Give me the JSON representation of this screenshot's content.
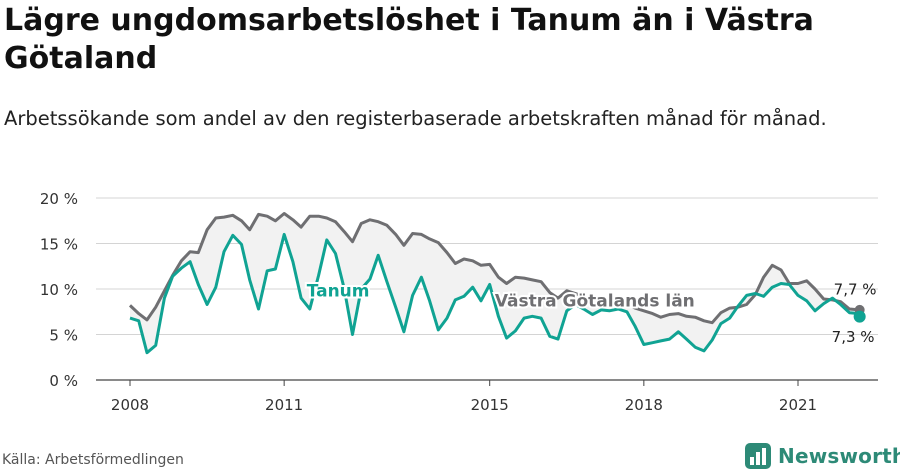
{
  "title": "Lägre ungdomsarbetslöshet i Tanum än i Västra Götaland",
  "subtitle": "Arbetssökande som andel av den registerbaserade arbetskraften månad för månad.",
  "source": "Källa: Arbetsförmedlingen",
  "brand": {
    "name": "Newsworthy",
    "icon": "newsworthy-logo-icon"
  },
  "colors": {
    "tanum": "#10a393",
    "vg": "#6f6f72",
    "fill": "#f2f2f2"
  },
  "chart_data": {
    "type": "line",
    "ylim": [
      0,
      20
    ],
    "yticks": [
      0,
      5,
      10,
      15,
      20
    ],
    "ytick_labels": [
      "0 %",
      "5 %",
      "10 %",
      "15 %",
      "20 %"
    ],
    "xlim": [
      2008.0,
      2022.6
    ],
    "xticks": [
      2008,
      2011,
      2015,
      2018,
      2021
    ],
    "xtick_labels": [
      "2008",
      "2011",
      "2015",
      "2018",
      "2021"
    ],
    "grid": true,
    "series": [
      {
        "name": "Västra Götalands län",
        "label": "Västra Götalands län",
        "color": "#6f6f72",
        "x": [
          2008.0,
          2008.17,
          2008.33,
          2008.5,
          2008.67,
          2008.83,
          2009.0,
          2009.17,
          2009.33,
          2009.5,
          2009.67,
          2009.83,
          2010.0,
          2010.17,
          2010.33,
          2010.5,
          2010.67,
          2010.83,
          2011.0,
          2011.17,
          2011.33,
          2011.5,
          2011.67,
          2011.83,
          2012.0,
          2012.17,
          2012.33,
          2012.5,
          2012.67,
          2012.83,
          2013.0,
          2013.17,
          2013.33,
          2013.5,
          2013.67,
          2013.83,
          2014.0,
          2014.17,
          2014.33,
          2014.5,
          2014.67,
          2014.83,
          2015.0,
          2015.17,
          2015.33,
          2015.5,
          2015.67,
          2015.83,
          2016.0,
          2016.17,
          2016.33,
          2016.5,
          2016.67,
          2016.83,
          2017.0,
          2017.17,
          2017.33,
          2017.5,
          2017.67,
          2017.83,
          2018.0,
          2018.17,
          2018.33,
          2018.5,
          2018.67,
          2018.83,
          2019.0,
          2019.17,
          2019.33,
          2019.5,
          2019.67,
          2019.83,
          2020.0,
          2020.17,
          2020.33,
          2020.5,
          2020.67,
          2020.83,
          2021.0,
          2021.17,
          2021.33,
          2021.5,
          2021.67,
          2021.83,
          2022.0,
          2022.2
        ],
        "values": [
          8.2,
          7.3,
          6.6,
          8.0,
          9.8,
          11.5,
          13.1,
          14.1,
          14.0,
          16.5,
          17.8,
          17.9,
          18.1,
          17.5,
          16.5,
          18.2,
          18.0,
          17.5,
          18.3,
          17.6,
          16.8,
          18.0,
          18.0,
          17.8,
          17.4,
          16.3,
          15.2,
          17.2,
          17.6,
          17.4,
          17.0,
          16.0,
          14.8,
          16.1,
          16.0,
          15.5,
          15.1,
          14.0,
          12.8,
          13.3,
          13.1,
          12.6,
          12.7,
          11.3,
          10.6,
          11.3,
          11.2,
          11.0,
          10.8,
          9.6,
          9.0,
          9.8,
          9.5,
          9.2,
          9.1,
          8.6,
          8.1,
          8.5,
          8.3,
          7.9,
          7.6,
          7.3,
          6.9,
          7.2,
          7.3,
          7.0,
          6.9,
          6.5,
          6.3,
          7.4,
          7.9,
          8.0,
          8.3,
          9.4,
          11.3,
          12.6,
          12.1,
          10.6,
          10.6,
          10.9,
          10.0,
          8.9,
          8.8,
          8.6,
          7.8,
          7.7
        ],
        "end_label": "7,7 %"
      },
      {
        "name": "Tanum",
        "label": "Tanum",
        "color": "#10a393",
        "x": [
          2008.0,
          2008.17,
          2008.33,
          2008.5,
          2008.67,
          2008.83,
          2009.0,
          2009.17,
          2009.33,
          2009.5,
          2009.67,
          2009.83,
          2010.0,
          2010.17,
          2010.33,
          2010.5,
          2010.67,
          2010.83,
          2011.0,
          2011.17,
          2011.33,
          2011.5,
          2011.67,
          2011.83,
          2012.0,
          2012.17,
          2012.33,
          2012.5,
          2012.67,
          2012.83,
          2013.0,
          2013.17,
          2013.33,
          2013.5,
          2013.67,
          2013.83,
          2014.0,
          2014.17,
          2014.33,
          2014.5,
          2014.67,
          2014.83,
          2015.0,
          2015.17,
          2015.33,
          2015.5,
          2015.67,
          2015.83,
          2016.0,
          2016.17,
          2016.33,
          2016.5,
          2016.67,
          2016.83,
          2017.0,
          2017.17,
          2017.33,
          2017.5,
          2017.67,
          2017.83,
          2018.0,
          2018.17,
          2018.33,
          2018.5,
          2018.67,
          2018.83,
          2019.0,
          2019.17,
          2019.33,
          2019.5,
          2019.67,
          2019.83,
          2020.0,
          2020.17,
          2020.33,
          2020.5,
          2020.67,
          2020.83,
          2021.0,
          2021.17,
          2021.33,
          2021.5,
          2021.67,
          2021.83,
          2022.0,
          2022.2
        ],
        "values": [
          6.8,
          6.5,
          3.0,
          3.8,
          9.0,
          11.4,
          12.3,
          13.0,
          10.5,
          8.3,
          10.2,
          14.1,
          15.9,
          14.9,
          11.0,
          7.8,
          12.0,
          12.2,
          16.0,
          13.0,
          9.0,
          7.8,
          11.5,
          15.4,
          13.9,
          10.0,
          5.0,
          10.0,
          11.1,
          13.7,
          10.8,
          8.0,
          5.3,
          9.3,
          11.3,
          8.7,
          5.5,
          6.8,
          8.8,
          9.2,
          10.2,
          8.7,
          10.5,
          7.0,
          4.6,
          5.4,
          6.8,
          7.0,
          6.8,
          4.8,
          4.5,
          7.6,
          8.3,
          7.8,
          7.2,
          7.7,
          7.6,
          7.8,
          7.5,
          5.9,
          3.9,
          4.1,
          4.3,
          4.5,
          5.3,
          4.5,
          3.6,
          3.2,
          4.4,
          6.2,
          6.8,
          8.1,
          9.3,
          9.5,
          9.2,
          10.2,
          10.6,
          10.5,
          9.3,
          8.7,
          7.6,
          8.4,
          9.0,
          8.3,
          7.4,
          7.3
        ],
        "end_label": "7,3 %"
      }
    ]
  }
}
